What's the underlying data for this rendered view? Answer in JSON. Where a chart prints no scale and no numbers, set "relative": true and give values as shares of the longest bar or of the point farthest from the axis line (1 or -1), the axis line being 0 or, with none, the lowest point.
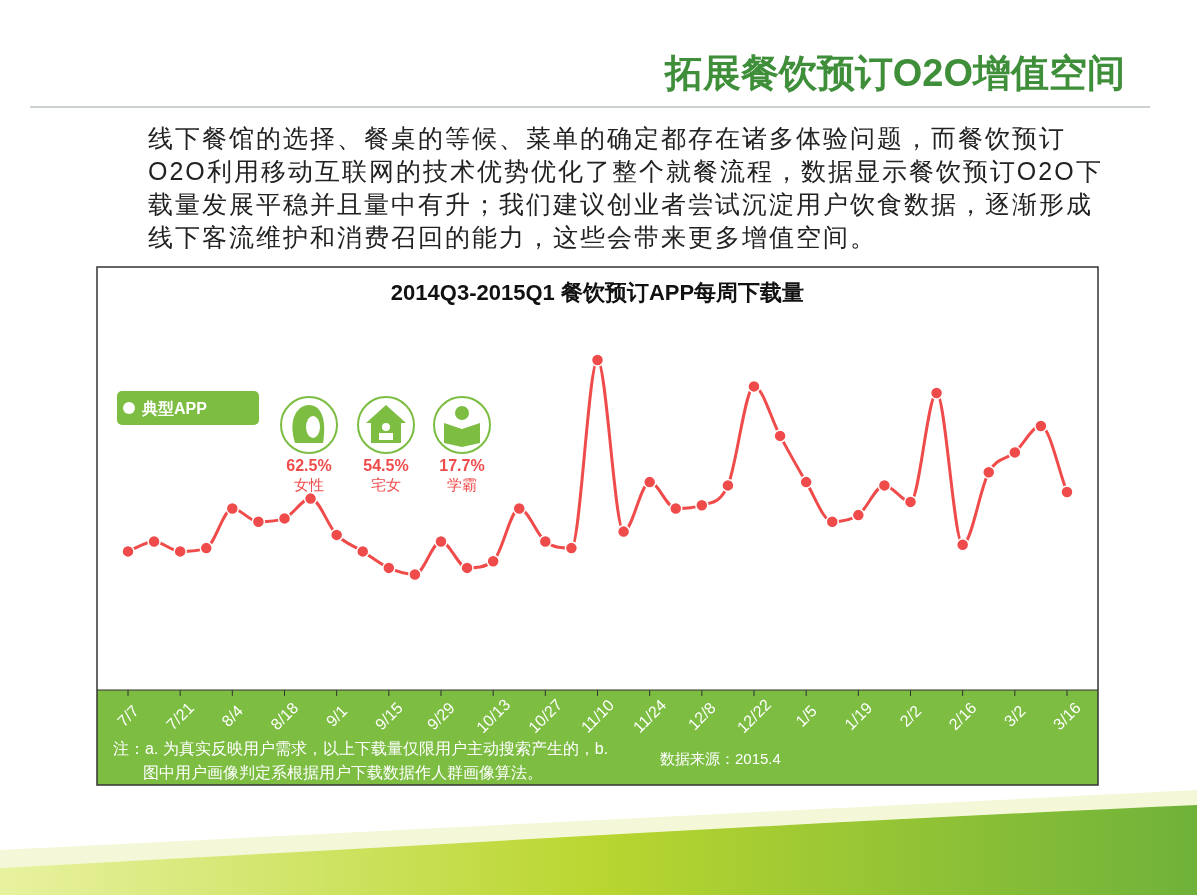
{
  "chart_data": {
    "type": "line",
    "title": "拓展餐饮预订O2O增值空间",
    "subtitle": "2014Q3-2015Q1 餐饮预订APP每周下载量",
    "annotations": [
      "线下餐馆的选择、餐桌的等候、菜单的确定都存在诸多体验问题，而餐饮预订O2O利用移动互联网的技术优势优化了整个就餐流程，数据显示餐饮预订O2O下载量发展平稳并且量中有升；我们建议创业者尝试沉淀用户饮食数据，逐渐形成线下客流维护和消费召回的能力，这些会带来更多增值空间。",
      "典型APP",
      "62.5%",
      "女性",
      "54.5%",
      "宅女",
      "17.7%",
      "学霸",
      "注：a. 为真实反映用户需求，以上下载量仅限用户主动搜索产生的，b.图中用户画像判定系根据用户下载数据作人群画像算法。",
      "数据来源：2015.4"
    ],
    "categories": [
      "7/7",
      null,
      "7/21",
      null,
      "8/4",
      null,
      "8/18",
      null,
      "9/1",
      null,
      "9/15",
      null,
      "9/29",
      null,
      "10/13",
      null,
      "10/27",
      null,
      "11/10",
      null,
      "11/24",
      null,
      "12/8",
      null,
      "12/22",
      null,
      "1/5",
      null,
      "1/19",
      null,
      "2/2",
      null,
      "2/16",
      null,
      "3/2",
      null,
      "3/16"
    ],
    "series": [
      {
        "color": "#f04b4b",
        "values": [
          0.42,
          0.45,
          0.42,
          0.43,
          0.55,
          0.51,
          0.52,
          0.58,
          0.47,
          0.42,
          0.37,
          0.35,
          0.45,
          0.37,
          0.39,
          0.55,
          0.45,
          0.43,
          1,
          0.48,
          0.63,
          0.55,
          0.56,
          0.62,
          0.92,
          0.77,
          0.63,
          0.51,
          0.53,
          0.62,
          0.57,
          0.9,
          0.44,
          0.66,
          0.72,
          0.8,
          0.6
        ]
      }
    ],
    "relative": true,
    "marker": "circle",
    "line_style": "solid",
    "tick_labels": "x"
  }
}
